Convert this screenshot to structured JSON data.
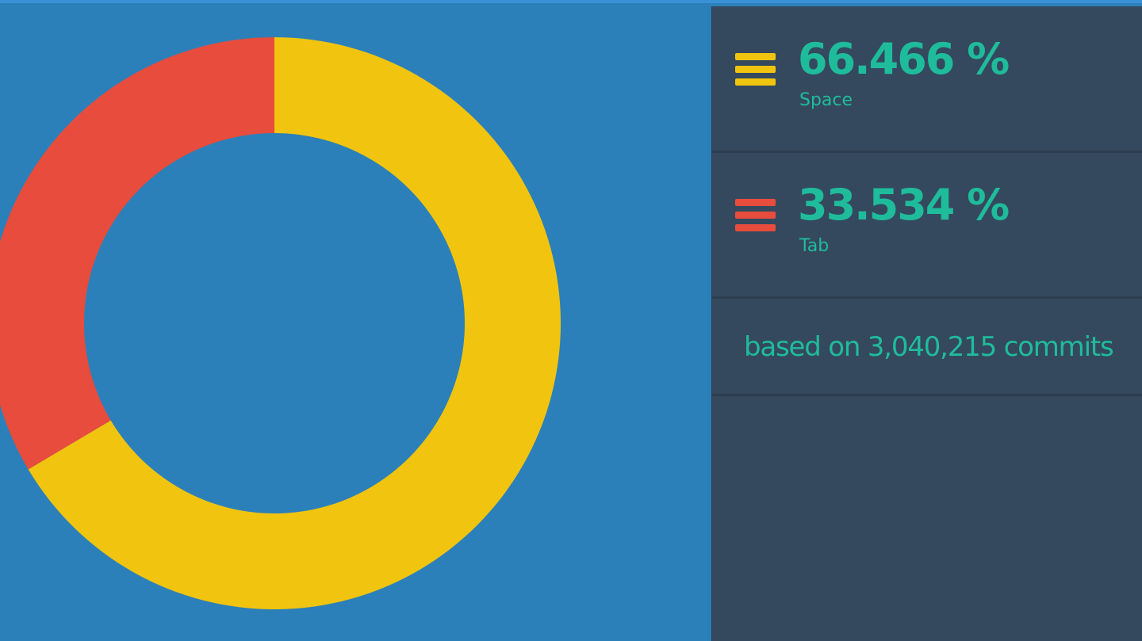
{
  "colors": {
    "background": "#2c80b9",
    "panel": "#34495e",
    "text": "#1fbc9c"
  },
  "chart_data": {
    "type": "pie",
    "variant": "donut",
    "categories": [
      "Space",
      "Tab"
    ],
    "values": [
      66.466,
      33.534
    ],
    "colors": [
      "#f1c40f",
      "#e74c3c"
    ],
    "unit": "%",
    "start_angle_deg": 0,
    "direction": "clockwise",
    "legend_placement": "right"
  },
  "legend": {
    "items": [
      {
        "percent_label": "66.466 %",
        "name": "Space",
        "color": "#f1c40f",
        "icon": "bars-icon"
      },
      {
        "percent_label": "33.534 %",
        "name": "Tab",
        "color": "#e74c3c",
        "icon": "bars-icon"
      }
    ],
    "footer": "based on 3,040,215 commits"
  }
}
